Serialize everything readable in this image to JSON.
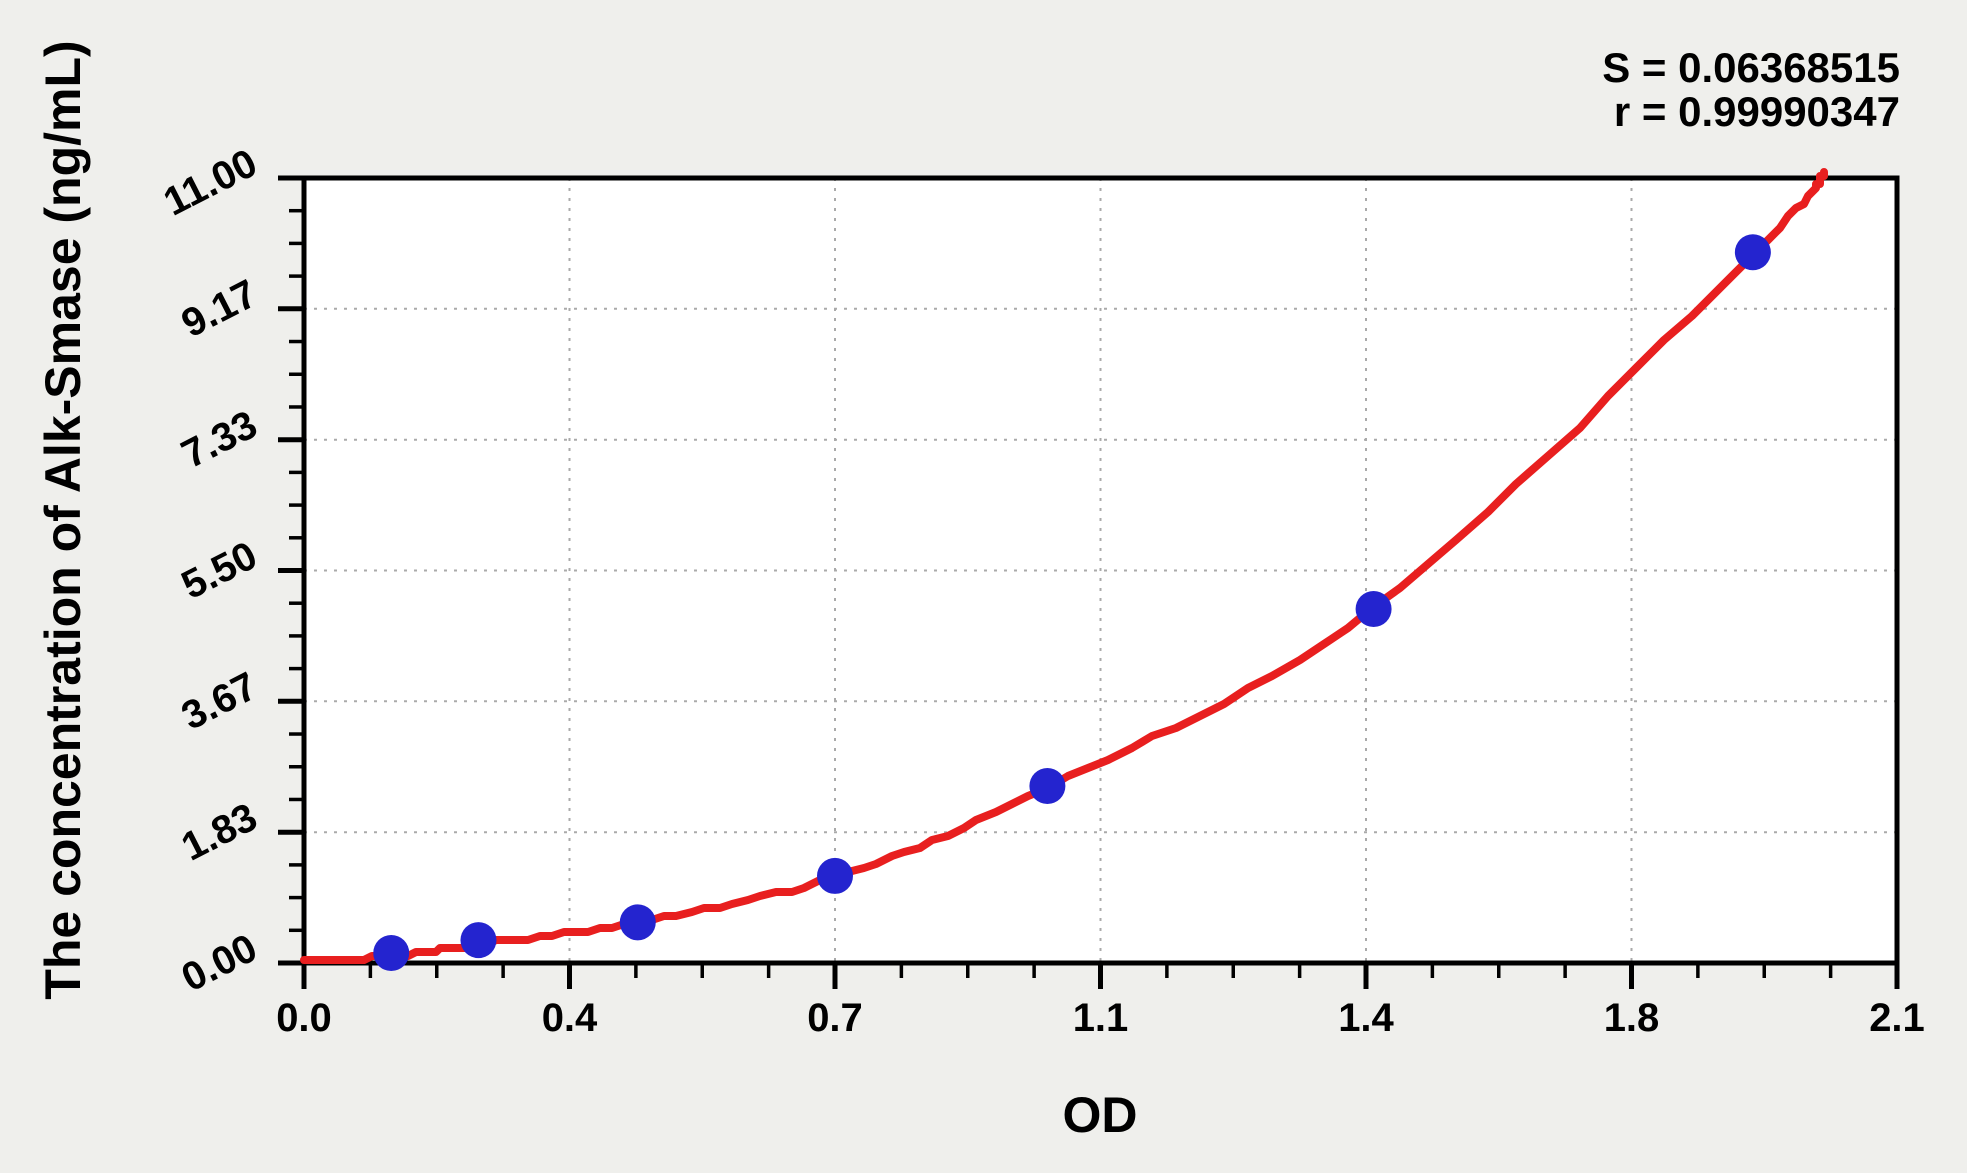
{
  "page": {
    "background_color": "#efefec",
    "plot_background": "#ffffff"
  },
  "stats": {
    "s_line": "S = 0.06368515",
    "r_line": "r = 0.99990347"
  },
  "chart_data": {
    "type": "scatter",
    "title": "",
    "xlabel": "OD",
    "ylabel": "The concentration of Alk-Smase (ng/mL)",
    "xlim": [
      0,
      2.1
    ],
    "ylim": [
      0,
      11
    ],
    "x_ticks": {
      "values": [
        0,
        0.35,
        0.7,
        1.05,
        1.4,
        1.75,
        2.1
      ],
      "labels": [
        "0.0",
        "0.4",
        "0.7",
        "1.1",
        "1.4",
        "1.8",
        "2.1"
      ]
    },
    "y_ticks": {
      "values": [
        0,
        1.833,
        3.667,
        5.5,
        7.333,
        9.167,
        11
      ],
      "labels": [
        "0.00",
        "1.83",
        "3.67",
        "5.50",
        "7.33",
        "9.17",
        "11.00"
      ]
    },
    "minor_ticks_per_interval": 3,
    "grid": true,
    "legend": null,
    "series": [
      {
        "name": "standard-points",
        "marker": "circle",
        "x": [
          0.115,
          0.23,
          0.44,
          0.7,
          0.98,
          1.41,
          1.91
        ],
        "y": [
          0.14,
          0.32,
          0.57,
          1.22,
          2.48,
          4.96,
          9.96
        ]
      }
    ],
    "fit_curve": {
      "anchors": [
        [
          0,
          0.02
        ],
        [
          0.115,
          0.1
        ],
        [
          0.23,
          0.26
        ],
        [
          0.44,
          0.58
        ],
        [
          0.7,
          1.2
        ],
        [
          0.98,
          2.46
        ],
        [
          1.41,
          4.96
        ],
        [
          1.91,
          9.92
        ],
        [
          2.005,
          11.08
        ]
      ]
    },
    "stats": {
      "S": "0.06368515",
      "r": "0.99990347"
    },
    "colors": {
      "point": "#2424cf",
      "curve": "#e81f1f",
      "grid": "#aaaaaa",
      "axis": "#000000"
    }
  }
}
